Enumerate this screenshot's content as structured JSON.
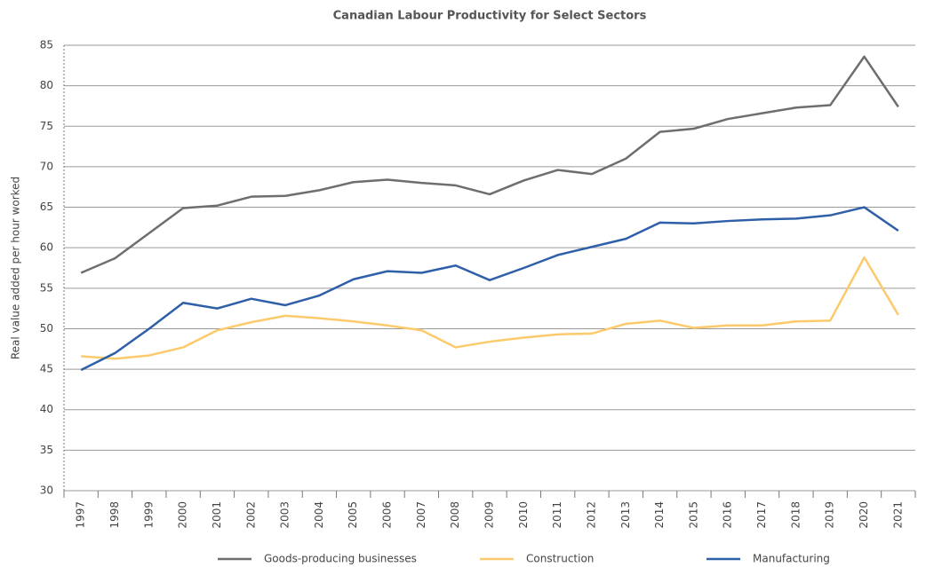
{
  "chart_data": {
    "type": "line",
    "title": "Canadian Labour Productivity for Select Sectors",
    "y_label": "Real value added per hour worked",
    "categories": [
      "1997",
      "1998",
      "1999",
      "2000",
      "2001",
      "2002",
      "2003",
      "2004",
      "2005",
      "2006",
      "2007",
      "2008",
      "2009",
      "2010",
      "2011",
      "2012",
      "2013",
      "2014",
      "2015",
      "2016",
      "2017",
      "2018",
      "2019",
      "2020",
      "2021"
    ],
    "series": [
      {
        "name": "Goods-producing businesses",
        "color": "#6d6e71",
        "values": [
          56.9,
          58.7,
          61.8,
          64.9,
          65.2,
          66.3,
          66.4,
          67.1,
          68.1,
          68.4,
          68.0,
          67.7,
          66.6,
          68.3,
          69.6,
          69.1,
          71.0,
          74.3,
          74.7,
          75.9,
          76.6,
          77.3,
          77.6,
          83.6,
          77.4
        ]
      },
      {
        "name": "Construction",
        "color": "#fdca6b",
        "values": [
          46.6,
          46.3,
          46.7,
          47.7,
          49.8,
          50.8,
          51.6,
          51.3,
          50.9,
          50.4,
          49.8,
          47.7,
          48.4,
          48.9,
          49.3,
          49.4,
          50.6,
          51.0,
          50.1,
          50.4,
          50.4,
          50.9,
          51.0,
          58.8,
          51.7
        ]
      },
      {
        "name": "Manufacturing",
        "color": "#2e5fa8",
        "values": [
          44.9,
          47.0,
          50.0,
          53.2,
          52.5,
          53.7,
          52.9,
          54.1,
          56.1,
          57.1,
          56.9,
          57.8,
          56.0,
          57.5,
          59.1,
          60.1,
          61.1,
          63.1,
          63.0,
          63.3,
          63.5,
          63.6,
          64.0,
          65.0,
          62.1
        ]
      }
    ],
    "ylim": [
      30,
      85
    ],
    "yticks": [
      30,
      35,
      40,
      45,
      50,
      55,
      60,
      65,
      70,
      75,
      80,
      85
    ],
    "grid": true
  }
}
